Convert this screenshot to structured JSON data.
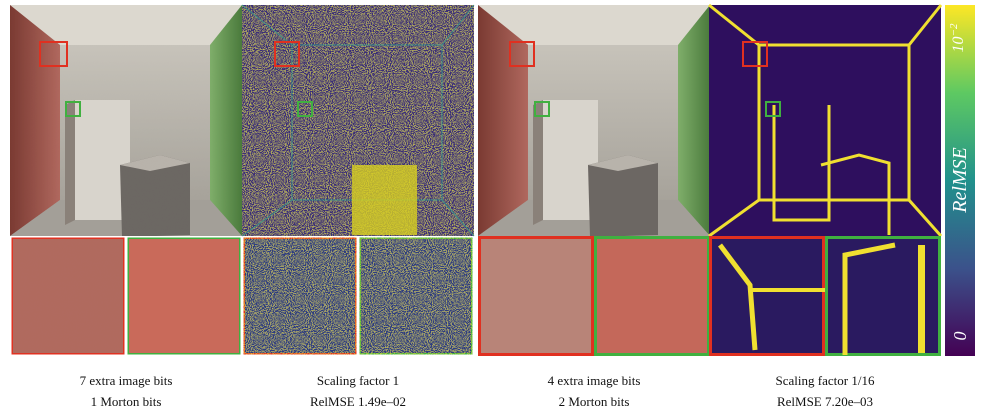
{
  "figure": {
    "captions": [
      {
        "line1": "7 extra image bits",
        "line2": "1 Morton bits"
      },
      {
        "line1": "Scaling factor 1",
        "line2": "RelMSE 1.49e–02"
      },
      {
        "line1": "4 extra image bits",
        "line2": "2 Morton bits"
      },
      {
        "line1": "Scaling factor 1/16",
        "line2": "RelMSE 7.20e–03"
      }
    ],
    "colorbar": {
      "label": "RelMSE",
      "top": {
        "base": "10",
        "exponent": "−2"
      },
      "bottom": "0"
    }
  }
}
